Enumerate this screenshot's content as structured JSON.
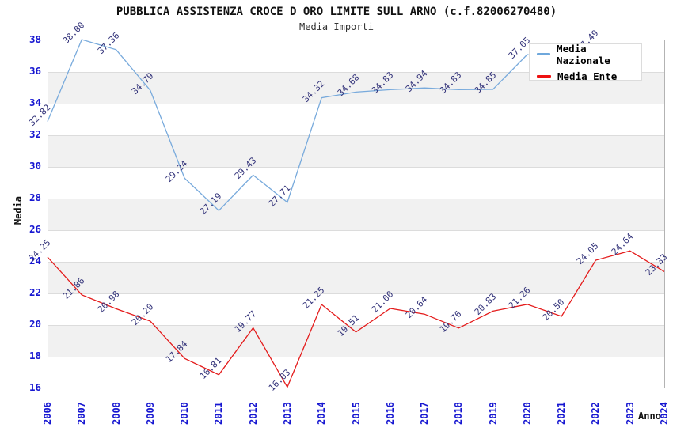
{
  "title": "PUBBLICA ASSISTENZA CROCE D ORO LIMITE SULL ARNO (c.f.82006270480)",
  "subtitle": "Media Importi",
  "axes": {
    "y_label": "Media",
    "x_label": "Anno",
    "y_ticks": [
      16,
      18,
      20,
      22,
      24,
      26,
      28,
      30,
      32,
      34,
      36,
      38
    ],
    "x_ticks": [
      "2006",
      "2007",
      "2008",
      "2009",
      "2010",
      "2011",
      "2012",
      "2013",
      "2014",
      "2015",
      "2016",
      "2017",
      "2018",
      "2019",
      "2020",
      "2021",
      "2022",
      "2023",
      "2024"
    ]
  },
  "legend": {
    "items": [
      {
        "label": "Media Nazionale",
        "color": "#6fa8dc"
      },
      {
        "label": "Media Ente",
        "color": "#ee1111"
      }
    ]
  },
  "chart_data": {
    "type": "line",
    "x": [
      "2006",
      "2007",
      "2008",
      "2009",
      "2010",
      "2011",
      "2012",
      "2013",
      "2014",
      "2015",
      "2016",
      "2017",
      "2018",
      "2019",
      "2020",
      "2021",
      "2022",
      "2023",
      "2024"
    ],
    "series": [
      {
        "name": "Media Nazionale",
        "color": "#78aadc",
        "values": [
          32.82,
          38.0,
          37.36,
          34.79,
          29.24,
          27.19,
          29.43,
          27.71,
          34.32,
          34.68,
          34.83,
          34.94,
          34.83,
          34.85,
          37.05,
          36.6,
          37.49,
          null,
          null
        ],
        "labels": [
          "32.82",
          "38.00",
          "37.36",
          "34.79",
          "29.24",
          "27.19",
          "29.43",
          "27.71",
          "34.32",
          "34.68",
          "34.83",
          "34.94",
          "34.83",
          "34.85",
          "37.05",
          "",
          "37.49",
          "",
          ""
        ],
        "note": "2021 value label mostly hidden behind legend; line after 2022 not visible"
      },
      {
        "name": "Media Ente",
        "color": "#e41b1b",
        "values": [
          24.25,
          21.86,
          20.98,
          20.2,
          17.84,
          16.81,
          19.77,
          16.03,
          21.25,
          19.51,
          21.0,
          20.64,
          19.76,
          20.83,
          21.26,
          20.5,
          24.05,
          24.64,
          23.33
        ],
        "labels": [
          "24.25",
          "21.86",
          "20.98",
          "20.20",
          "17.84",
          "16.81",
          "19.77",
          "16.03",
          "21.25",
          "19.51",
          "21.00",
          "20.64",
          "19.76",
          "20.83",
          "21.26",
          "20.50",
          "24.05",
          "24.64",
          "23.33"
        ]
      }
    ],
    "ylim": [
      16,
      38
    ],
    "gray_bands": [
      [
        18,
        20
      ],
      [
        22,
        24
      ],
      [
        26,
        28
      ],
      [
        30,
        32
      ],
      [
        34,
        36
      ]
    ],
    "legend_position": "top-right",
    "xlabel": "Anno",
    "ylabel": "Media"
  },
  "colors": {
    "tick_label": "#1717d1",
    "point_label": "#33337a",
    "band_gray": "#f1f1f1",
    "gridline": "#dcdcdc",
    "plot_border": "#b3b3b3"
  }
}
